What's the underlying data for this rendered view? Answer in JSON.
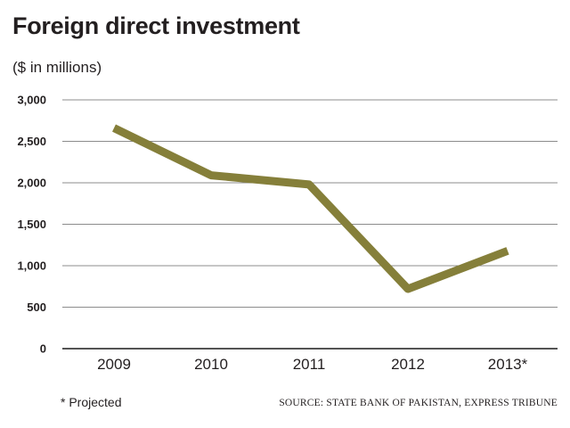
{
  "colors": {
    "line": "#857f3a",
    "grid": "#8c8c8c",
    "axis": "#1a1a1a",
    "text": "#231f20"
  },
  "chart_data": {
    "type": "line",
    "title": "Foreign direct investment",
    "subtitle": "($ in millions)",
    "categories": [
      "2009",
      "2010",
      "2011",
      "2012",
      "2013*"
    ],
    "series": [
      {
        "name": "Foreign direct investment",
        "values": [
          2660,
          2090,
          1980,
          720,
          1180
        ]
      }
    ],
    "yticks": [
      0,
      500,
      1000,
      1500,
      2000,
      2500,
      3000
    ],
    "ytick_labels": [
      "0",
      "500",
      "1,000",
      "1,500",
      "2,000",
      "2,500",
      "3,000"
    ],
    "ylim": [
      0,
      3000
    ],
    "xlabel": "",
    "ylabel": "",
    "grid": true,
    "legend": "none",
    "footnote": "* Projected",
    "source": "SOURCE: STATE BANK OF PAKISTAN, EXPRESS TRIBUNE"
  }
}
